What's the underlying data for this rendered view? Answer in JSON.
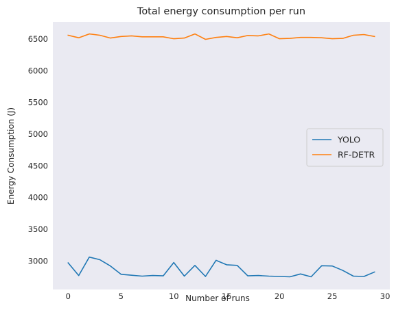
{
  "chart_data": {
    "type": "line",
    "title": "Total energy consumption per run",
    "xlabel": "Number of runs",
    "ylabel": "Energy Consumption (J)",
    "xlim": [
      -1.45,
      30.45
    ],
    "ylim": [
      2550,
      6770
    ],
    "xticks": [
      0,
      5,
      10,
      15,
      20,
      25,
      30
    ],
    "yticks": [
      3000,
      3500,
      4000,
      4500,
      5000,
      5500,
      6000,
      6500
    ],
    "grid": false,
    "legend_position": "center-right",
    "background": "#eaeaf2",
    "x": [
      0,
      1,
      2,
      3,
      4,
      5,
      6,
      7,
      8,
      9,
      10,
      11,
      12,
      13,
      14,
      15,
      16,
      17,
      18,
      19,
      20,
      21,
      22,
      23,
      24,
      25,
      26,
      27,
      28,
      29
    ],
    "series": [
      {
        "name": "YOLO",
        "color": "#1f77b4",
        "values": [
          2970,
          2770,
          3060,
          3020,
          2920,
          2790,
          2775,
          2760,
          2770,
          2765,
          2975,
          2760,
          2930,
          2755,
          3010,
          2940,
          2930,
          2765,
          2770,
          2760,
          2755,
          2750,
          2795,
          2750,
          2925,
          2920,
          2850,
          2760,
          2755,
          2825
        ]
      },
      {
        "name": "RF-DETR",
        "color": "#ff7f0e",
        "values": [
          6560,
          6520,
          6580,
          6560,
          6515,
          6540,
          6550,
          6535,
          6535,
          6535,
          6505,
          6515,
          6580,
          6495,
          6525,
          6540,
          6520,
          6555,
          6550,
          6580,
          6505,
          6510,
          6525,
          6525,
          6520,
          6505,
          6510,
          6560,
          6570,
          6540
        ]
      }
    ]
  }
}
